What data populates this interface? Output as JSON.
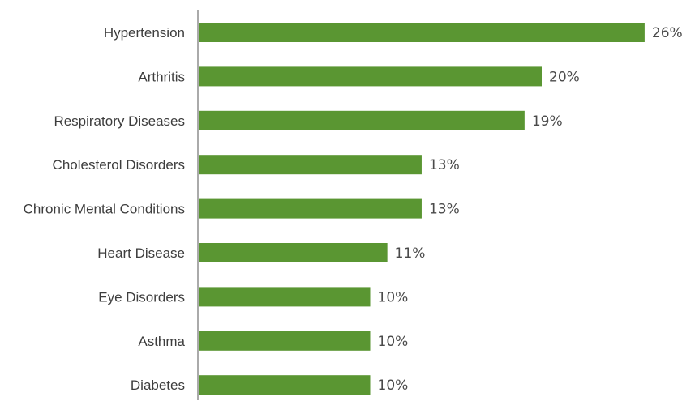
{
  "chart_data": {
    "type": "bar",
    "orientation": "horizontal",
    "categories": [
      "Hypertension",
      "Arthritis",
      "Respiratory Diseases",
      "Cholesterol Disorders",
      "Chronic Mental Conditions",
      "Heart Disease",
      "Eye Disorders",
      "Asthma",
      "Diabetes"
    ],
    "values": [
      26,
      20,
      19,
      13,
      13,
      11,
      10,
      10,
      10
    ],
    "value_labels": [
      "26%",
      "20%",
      "19%",
      "13%",
      "13%",
      "11%",
      "10%",
      "10%",
      "10%"
    ],
    "unit": "%",
    "title": "",
    "xlabel": "",
    "ylabel": "",
    "grid": false,
    "legend": "none",
    "colors": {
      "bar": "#5a9632",
      "axis": "#555555",
      "text": "#3d3d3d"
    }
  }
}
